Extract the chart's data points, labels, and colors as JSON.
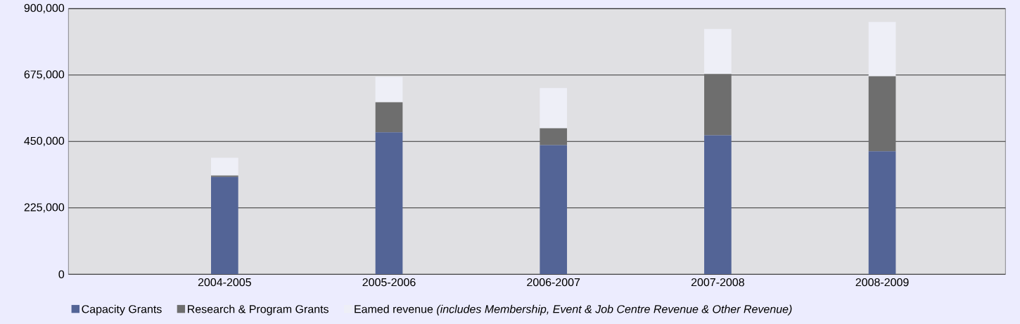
{
  "chart_data": {
    "type": "bar",
    "stacked": true,
    "categories": [
      "2004-2005",
      "2005-2006",
      "2006-2007",
      "2007-2008",
      "2008-2009"
    ],
    "series": [
      {
        "name": "Capacity Grants",
        "color": "#536496",
        "values": [
          330000,
          481000,
          438000,
          471000,
          417000
        ]
      },
      {
        "name": "Research & Program Grants",
        "color": "#6e6e6e",
        "values": [
          5000,
          102000,
          57000,
          208000,
          254000
        ]
      },
      {
        "name": "Eamed revenue *(includes Membership, Event & Job Centre Revenue & Other Revenue)*",
        "color": "#eeeff7",
        "values": [
          60000,
          86000,
          136000,
          152000,
          184000
        ]
      }
    ],
    "ylim": [
      0,
      900000
    ],
    "yticks": [
      {
        "value": 0,
        "label": "0"
      },
      {
        "value": 225000,
        "label": "225,000"
      },
      {
        "value": 450000,
        "label": "450,000"
      },
      {
        "value": 675000,
        "label": "675,000"
      },
      {
        "value": 900000,
        "label": "900,000"
      }
    ],
    "grid": "y",
    "legend": "bottom"
  }
}
